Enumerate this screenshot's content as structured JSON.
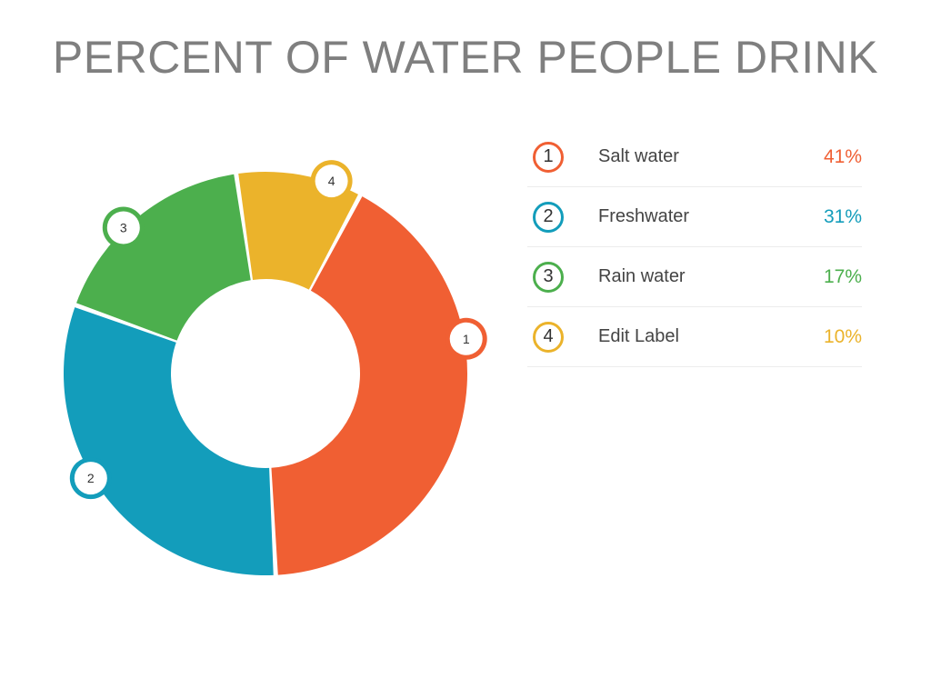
{
  "title": "PERCENT OF WATER PEOPLE DRINK",
  "colors": {
    "orange": "#f05f33",
    "blue": "#139dbb",
    "green": "#4caf4d",
    "yellow": "#ebb32b"
  },
  "chart_data": {
    "type": "pie",
    "title": "PERCENT OF WATER PEOPLE DRINK",
    "series": [
      {
        "marker": "1",
        "label": "Salt water",
        "value": 41,
        "value_label": "41%",
        "color": "#f05f33"
      },
      {
        "marker": "2",
        "label": "Freshwater",
        "value": 31,
        "value_label": "31%",
        "color": "#139dbb"
      },
      {
        "marker": "3",
        "label": "Rain water",
        "value": 17,
        "value_label": "17%",
        "color": "#4caf4d"
      },
      {
        "marker": "4",
        "label": "Edit Label",
        "value": 10,
        "value_label": "10%",
        "color": "#ebb32b"
      }
    ],
    "legend_placement": "right"
  }
}
